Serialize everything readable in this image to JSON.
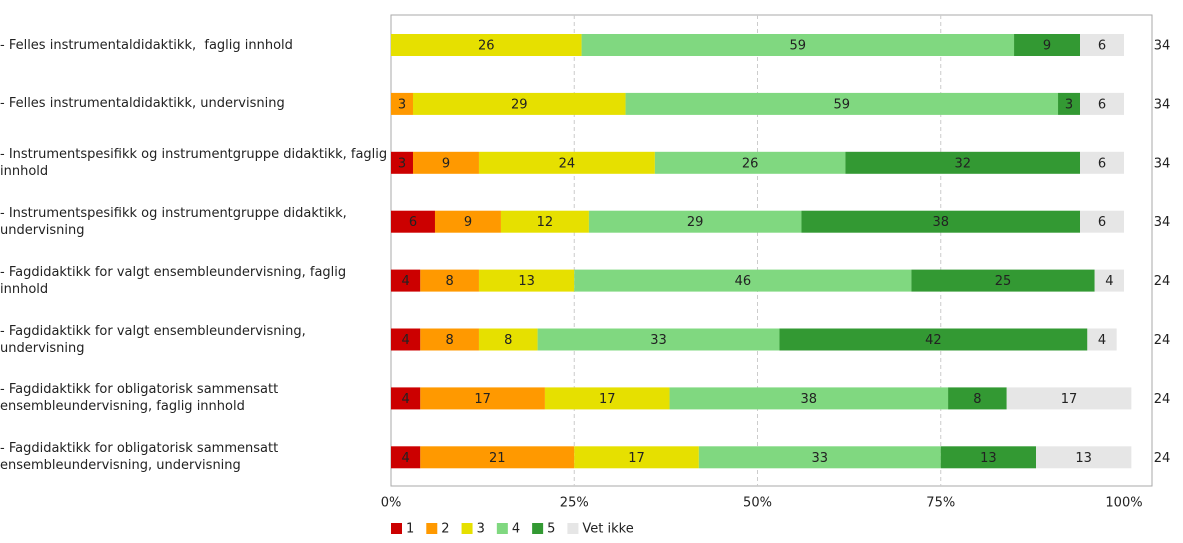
{
  "chart_data": {
    "type": "stacked-bar-horizontal",
    "categories": [
      "- Felles instrumentaldidaktikk,  faglig innhold",
      "- Felles instrumentaldidaktikk, undervisning",
      "- Instrumentspesifikk og instrumentgruppe didaktikk, faglig innhold",
      "- Instrumentspesifikk og instrumentgruppe didaktikk, undervisning",
      "- Fagdidaktikk for valgt ensembleundervisning, faglig innhold",
      "- Fagdidaktikk for valgt ensembleundervisning, undervisning",
      "- Fagdidaktikk for obligatorisk sammensatt ensembleundervisning, faglig innhold",
      "- Fagdidaktikk for obligatorisk sammensatt ensembleundervisning, undervisning"
    ],
    "series": [
      {
        "name": "1",
        "color": "#cc0000",
        "values": [
          null,
          null,
          3,
          6,
          4,
          4,
          4,
          4
        ]
      },
      {
        "name": "2",
        "color": "#ff9900",
        "values": [
          null,
          3,
          9,
          9,
          8,
          8,
          17,
          21
        ]
      },
      {
        "name": "3",
        "color": "#e6e000",
        "values": [
          26,
          29,
          24,
          12,
          13,
          8,
          17,
          17
        ]
      },
      {
        "name": "4",
        "color": "#80d880",
        "values": [
          59,
          59,
          26,
          29,
          46,
          33,
          38,
          33
        ]
      },
      {
        "name": "5",
        "color": "#339933",
        "values": [
          9,
          3,
          32,
          38,
          25,
          42,
          8,
          13
        ]
      },
      {
        "name": "Vet ikke",
        "color": "#e6e6e6",
        "values": [
          6,
          6,
          6,
          6,
          4,
          4,
          17,
          13
        ]
      }
    ],
    "counts": [
      34,
      34,
      34,
      34,
      24,
      24,
      24,
      24
    ],
    "xlim": [
      0,
      100
    ],
    "xticks": [
      {
        "value": 0,
        "label": "0%"
      },
      {
        "value": 25,
        "label": "25%"
      },
      {
        "value": 50,
        "label": "50%"
      },
      {
        "value": 75,
        "label": "75%"
      },
      {
        "value": 100,
        "label": "100%"
      }
    ],
    "grid": true
  }
}
